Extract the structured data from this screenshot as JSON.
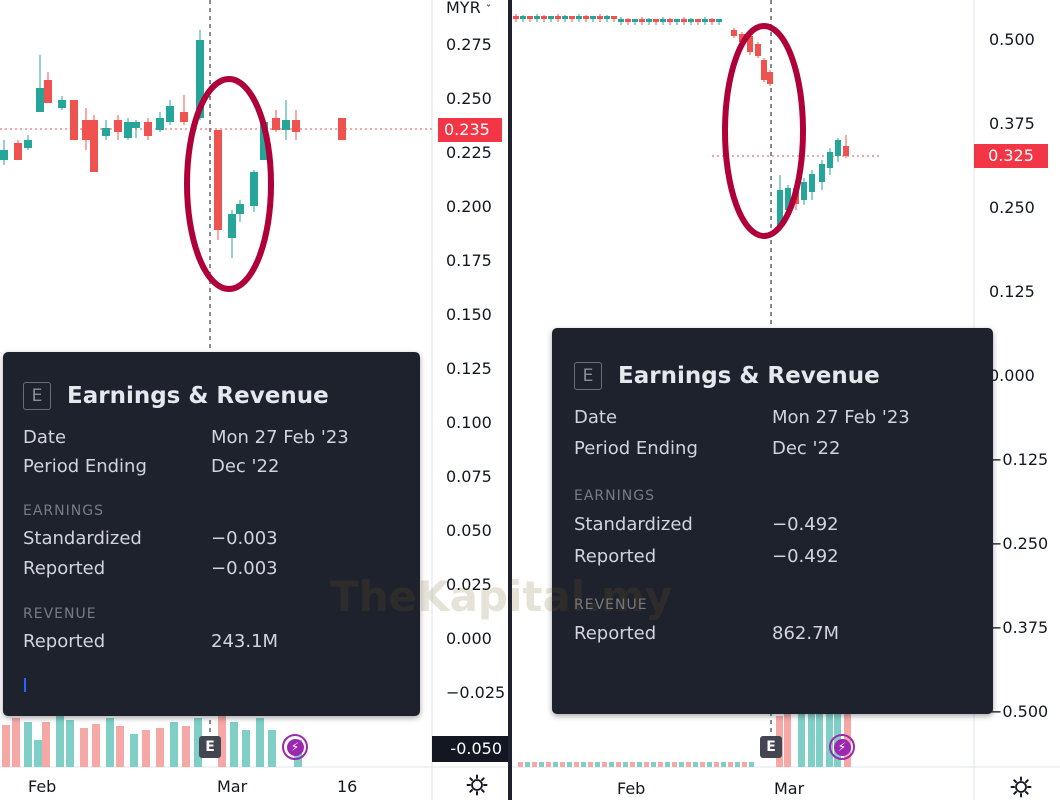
{
  "left_chart": {
    "currency": "MYR",
    "price_axis_labels": [
      "0.275",
      "0.250",
      "0.225",
      "0.200",
      "0.175",
      "0.150",
      "0.125",
      "0.100",
      "0.075",
      "0.050",
      "0.025",
      "0.000",
      "-0.025"
    ],
    "current_price": "0.235",
    "crosshair_price": "-0.050",
    "time_labels": [
      "Feb",
      "Mar",
      "16"
    ],
    "earnings_marker": "E",
    "tooltip": {
      "icon": "E",
      "title": "Earnings & Revenue",
      "date_label": "Date",
      "date_value": "Mon 27 Feb '23",
      "period_label": "Period Ending",
      "period_value": "Dec '22",
      "earnings_section": "EARNINGS",
      "standardized_label": "Standardized",
      "standardized_value": "−0.003",
      "reported_label": "Reported",
      "reported_value": "−0.003",
      "revenue_section": "REVENUE",
      "revenue_label": "Reported",
      "revenue_value": "243.1M"
    }
  },
  "right_chart": {
    "price_axis_labels": [
      "0.500",
      "0.375",
      "0.250",
      "0.125",
      "0.000",
      "-0.125",
      "-0.250",
      "-0.375",
      "-0.500"
    ],
    "current_price": "0.325",
    "time_labels": [
      "Feb",
      "Mar"
    ],
    "earnings_marker": "E",
    "tooltip": {
      "icon": "E",
      "title": "Earnings & Revenue",
      "date_label": "Date",
      "date_value": "Mon 27 Feb '23",
      "period_label": "Period Ending",
      "period_value": "Dec '22",
      "earnings_section": "EARNINGS",
      "standardized_label": "Standardized",
      "standardized_value": "−0.492",
      "reported_label": "Reported",
      "reported_value": "−0.492",
      "revenue_section": "REVENUE",
      "revenue_label": "Reported",
      "revenue_value": "862.7M"
    }
  },
  "watermark": "TheKapital.my",
  "colors": {
    "up": "#26a69a",
    "down": "#ef5350",
    "highlight_ellipse": "#b0003a",
    "price_badge": "#f23645",
    "tooltip_bg": "#1e222d"
  },
  "icons": [
    "gear-icon",
    "earnings-icon",
    "flash-icon",
    "chevron-down-icon"
  ]
}
